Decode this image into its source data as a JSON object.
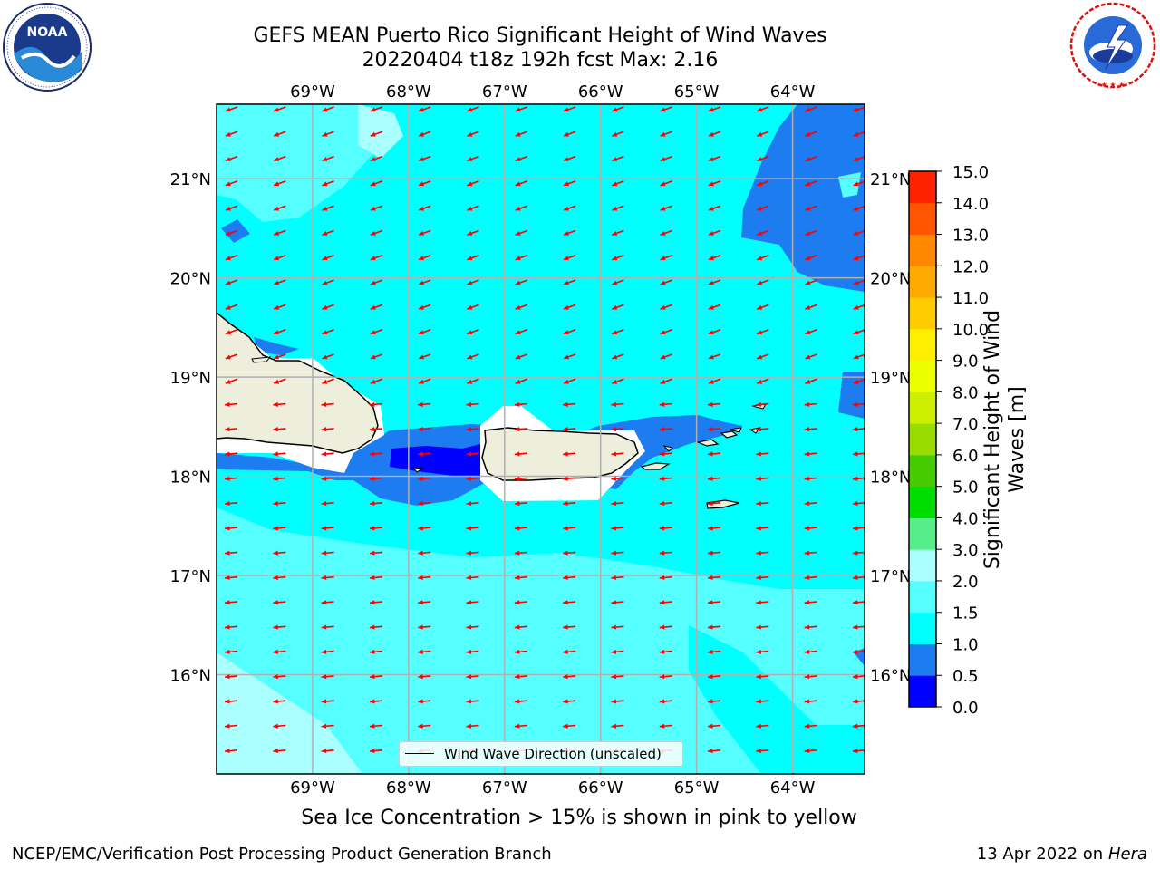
{
  "header": {
    "title_line1": "GEFS MEAN Puerto Rico Significant Height of Wind Waves",
    "title_line2": "20220404 t18z 192h fcst   Max: 2.16"
  },
  "logos": {
    "left": "noaa-logo",
    "left_text": "NOAA",
    "left_ring_text": "NATIONAL OCEANIC AND ATMOSPHERIC ADMINISTRATION · U.S. DEPARTMENT OF COMMERCE",
    "right": "nws-logo",
    "right_ring_text": "NATIONAL WEATHER SERVICE"
  },
  "map": {
    "lon_labels": [
      "69°W",
      "68°W",
      "67°W",
      "66°W",
      "65°W",
      "64°W"
    ],
    "lat_labels": [
      "21°N",
      "20°N",
      "19°N",
      "18°N",
      "17°N",
      "16°N"
    ],
    "lon_values": [
      -69,
      -68,
      -67,
      -66,
      -65,
      -64
    ],
    "lat_values": [
      21,
      20,
      19,
      18,
      17,
      16
    ],
    "lon_range": [
      -70.0,
      -63.25
    ],
    "lat_range": [
      15.0,
      21.75
    ],
    "arrow_color": "#ff0000",
    "arrow_direction": "toward-west-southwest",
    "legend_label": "Wind Wave Direction (unscaled)"
  },
  "colorbar": {
    "title": "Significant Height of Wind Waves [m]",
    "tick_labels": [
      "0.0",
      "0.5",
      "1.0",
      "1.5",
      "2.0",
      "3.0",
      "4.0",
      "5.0",
      "6.0",
      "7.0",
      "8.0",
      "9.0",
      "10.0",
      "11.0",
      "12.0",
      "13.0",
      "14.0",
      "15.0"
    ],
    "colors": [
      "#0000ff",
      "#1c7cf0",
      "#00ffff",
      "#55ffff",
      "#aaffff",
      "#55ee88",
      "#00dd00",
      "#44cc00",
      "#99dd00",
      "#ccee00",
      "#eeff00",
      "#ffee00",
      "#ffcc00",
      "#ffaa00",
      "#ff8800",
      "#ff5500",
      "#ff2200"
    ]
  },
  "notes": {
    "sea_ice": "Sea Ice Concentration > 15% is shown in pink to yellow"
  },
  "footer": {
    "left": "NCEP/EMC/Verification Post Processing Product Generation Branch",
    "right_date": "13 Apr 2022 on",
    "right_host": "Hera"
  }
}
